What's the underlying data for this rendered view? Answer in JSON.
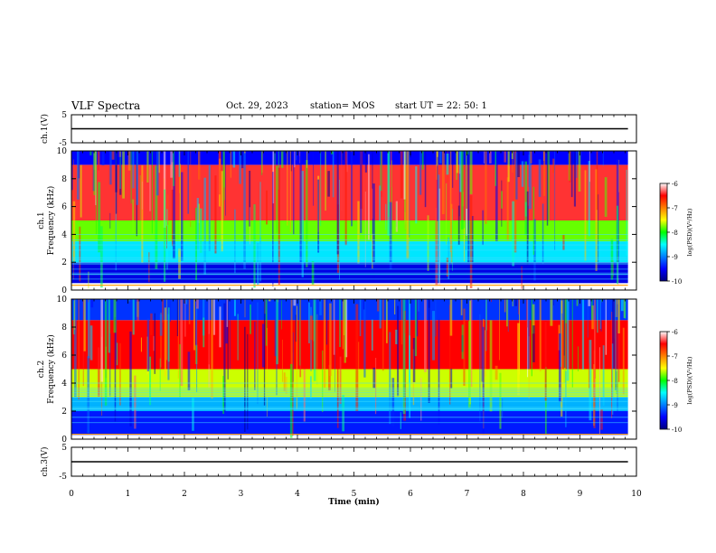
{
  "header": {
    "title": "VLF Spectra",
    "date": "Oct. 29, 2023",
    "station": "station= MOS",
    "start": "start  UT =  22: 50: 1"
  },
  "chart_data": [
    {
      "type": "line",
      "panel": "ch1-voltage",
      "ylabel": "ch.1(V)",
      "ylim": [
        -5,
        5
      ],
      "y_ticks": [
        "5",
        "-5"
      ],
      "series": [
        {
          "x": [
            0,
            9.85
          ],
          "y": [
            0,
            0
          ]
        }
      ]
    },
    {
      "type": "heatmap",
      "panel": "ch1-spectrogram",
      "ylabel": "ch.1\nFrequency (kHz)",
      "ylim": [
        0,
        10
      ],
      "y_ticks": [
        "0",
        "2",
        "4",
        "6",
        "8",
        "10"
      ],
      "xlim": [
        0,
        9.85
      ],
      "colorbar": {
        "label": "log(PSD)(V²/Hz)",
        "ticks": [
          "-6",
          "-7",
          "-8",
          "-9",
          "-10"
        ],
        "range": [
          -10,
          -6
        ]
      },
      "bands": [
        {
          "f_range": [
            5.0,
            9.0
          ],
          "level": -6.4
        },
        {
          "f_range": [
            3.5,
            5.0
          ],
          "level": -7.8
        },
        {
          "f_range": [
            2.0,
            3.5
          ],
          "level": -8.6
        },
        {
          "f_range": [
            0.5,
            2.0
          ],
          "level": -9.6
        },
        {
          "f_range": [
            9.0,
            10.0
          ],
          "level": -9.5
        }
      ]
    },
    {
      "type": "heatmap",
      "panel": "ch2-spectrogram",
      "ylabel": "ch.2\nFrequency (kHz)",
      "ylim": [
        0,
        10
      ],
      "y_ticks": [
        "0",
        "2",
        "4",
        "6",
        "8",
        "10"
      ],
      "xlim": [
        0,
        9.85
      ],
      "colorbar": {
        "label": "log(PSD)(V²/Hz)",
        "ticks": [
          "-6",
          "-7",
          "-8",
          "-9",
          "-10"
        ],
        "range": [
          -10,
          -6
        ]
      },
      "bands": [
        {
          "f_range": [
            5.0,
            8.5
          ],
          "level": -6.5
        },
        {
          "f_range": [
            3.0,
            5.0
          ],
          "level": -7.6
        },
        {
          "f_range": [
            2.0,
            3.0
          ],
          "level": -8.8
        },
        {
          "f_range": [
            0.3,
            2.0
          ],
          "level": -9.4
        },
        {
          "f_range": [
            8.5,
            10.0
          ],
          "level": -9.3
        }
      ]
    },
    {
      "type": "line",
      "panel": "ch3-voltage",
      "ylabel": "ch.3(V)",
      "ylim": [
        -5,
        5
      ],
      "y_ticks": [
        "5",
        "-5"
      ],
      "xlabel": "Time (min)",
      "x_ticks": [
        "0",
        "1",
        "2",
        "3",
        "4",
        "5",
        "6",
        "7",
        "8",
        "9",
        "10"
      ],
      "xlim": [
        0,
        10
      ],
      "series": [
        {
          "x": [
            0,
            9.85
          ],
          "y": [
            0,
            0
          ]
        }
      ]
    }
  ]
}
